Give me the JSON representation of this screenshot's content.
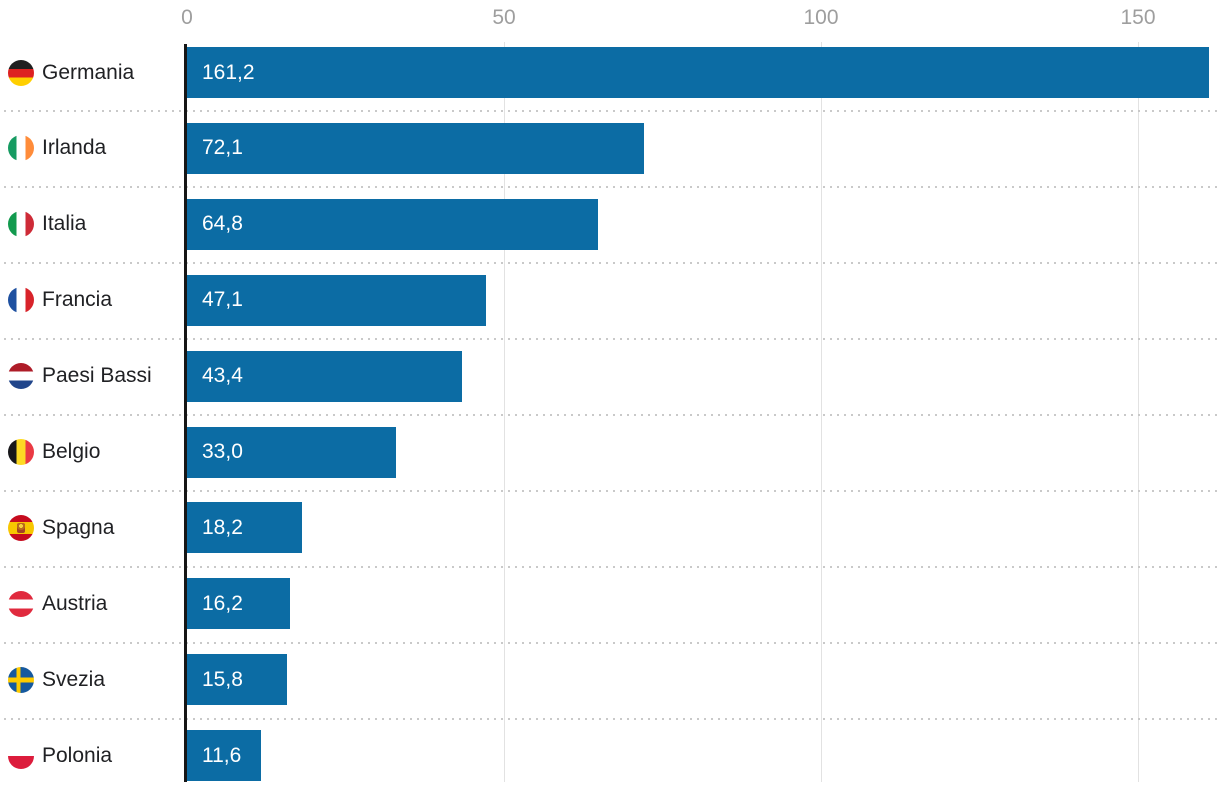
{
  "chart_data": {
    "type": "bar",
    "orientation": "horizontal",
    "title": "",
    "xlabel": "",
    "ylabel": "",
    "xlim": [
      0,
      163
    ],
    "grid": true,
    "legend": false,
    "bar_color": "#0c6ca4",
    "categories": [
      "Germania",
      "Irlanda",
      "Italia",
      "Francia",
      "Paesi Bassi",
      "Belgio",
      "Spagna",
      "Austria",
      "Svezia",
      "Polonia"
    ],
    "values": [
      161.2,
      72.1,
      64.8,
      47.1,
      43.4,
      33.0,
      18.2,
      16.2,
      15.8,
      11.6
    ],
    "value_labels": [
      "161,2",
      "72,1",
      "64,8",
      "47,1",
      "43,4",
      "33,0",
      "18,2",
      "16,2",
      "15,8",
      "11,6"
    ],
    "flags": [
      "germany",
      "ireland",
      "italy",
      "france",
      "netherlands",
      "belgium",
      "spain",
      "austria",
      "sweden",
      "poland"
    ],
    "flag_icon_names": [
      "germany-flag-icon",
      "ireland-flag-icon",
      "italy-flag-icon",
      "france-flag-icon",
      "netherlands-flag-icon",
      "belgium-flag-icon",
      "spain-flag-icon",
      "austria-flag-icon",
      "sweden-flag-icon",
      "poland-flag-icon"
    ],
    "x_ticks": [
      0,
      50,
      100,
      150
    ],
    "x_tick_labels": [
      "0",
      "50",
      "100",
      "150"
    ],
    "colors": {
      "bar": "#0c6ca4",
      "axis_line": "#161616",
      "gridline": "#e2e2e2",
      "separator_dots": "#c9c9c9",
      "tick_label": "#9e9e9e",
      "category_label": "#202124",
      "value_label": "#ffffff",
      "background": "#ffffff"
    }
  }
}
